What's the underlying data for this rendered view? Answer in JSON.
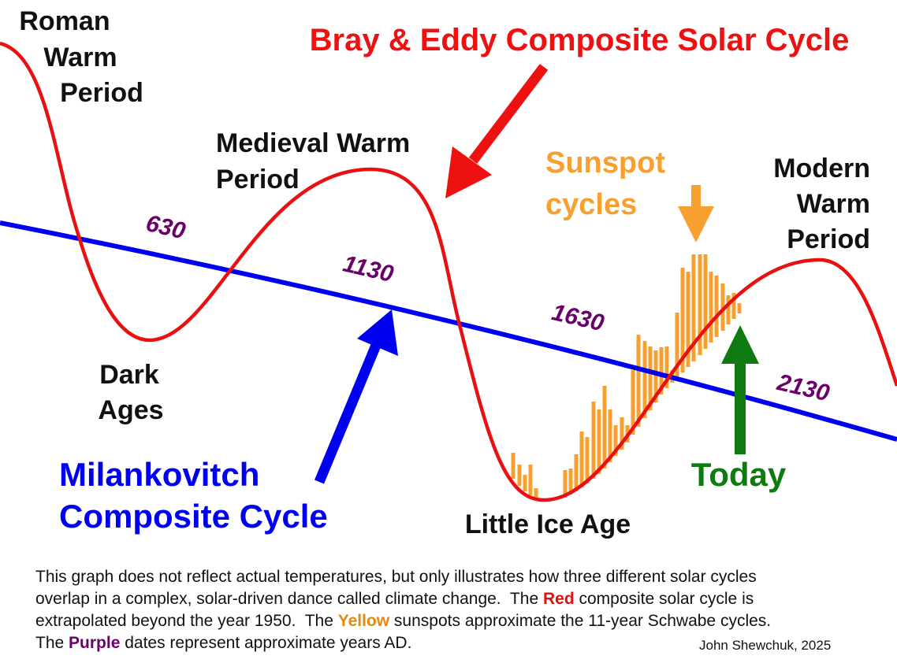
{
  "title": "Bray & Eddy Composite Solar Cycle",
  "labels": {
    "roman": [
      "Roman",
      "Warm",
      "Period"
    ],
    "medieval": [
      "Medieval Warm",
      "Period"
    ],
    "sunspot": [
      "Sunspot",
      "cycles"
    ],
    "modern": [
      "Modern",
      "Warm",
      "Period"
    ],
    "dark_ages": [
      "Dark",
      "Ages"
    ],
    "milankovitch": [
      "Milankovitch",
      "Composite Cycle"
    ],
    "little_ice_age": "Little Ice Age",
    "today": "Today"
  },
  "dates": [
    "630",
    "1130",
    "1630",
    "2130"
  ],
  "caption": {
    "lines": [
      [
        "This graph does not reflect actual temperatures, but only illustrates how three different solar cycles"
      ],
      [
        "overlap in a complex, solar-driven dance called climate change.  The ",
        "Red",
        " composite solar cycle is"
      ],
      [
        "extrapolated beyond the year 1950.  The ",
        "Yellow",
        " sunspots approximate the 11-year Schwabe cycles."
      ],
      [
        "The ",
        "Purple",
        " dates represent approximate years AD."
      ]
    ],
    "credit": "John Shewchuk, 2025"
  }
}
